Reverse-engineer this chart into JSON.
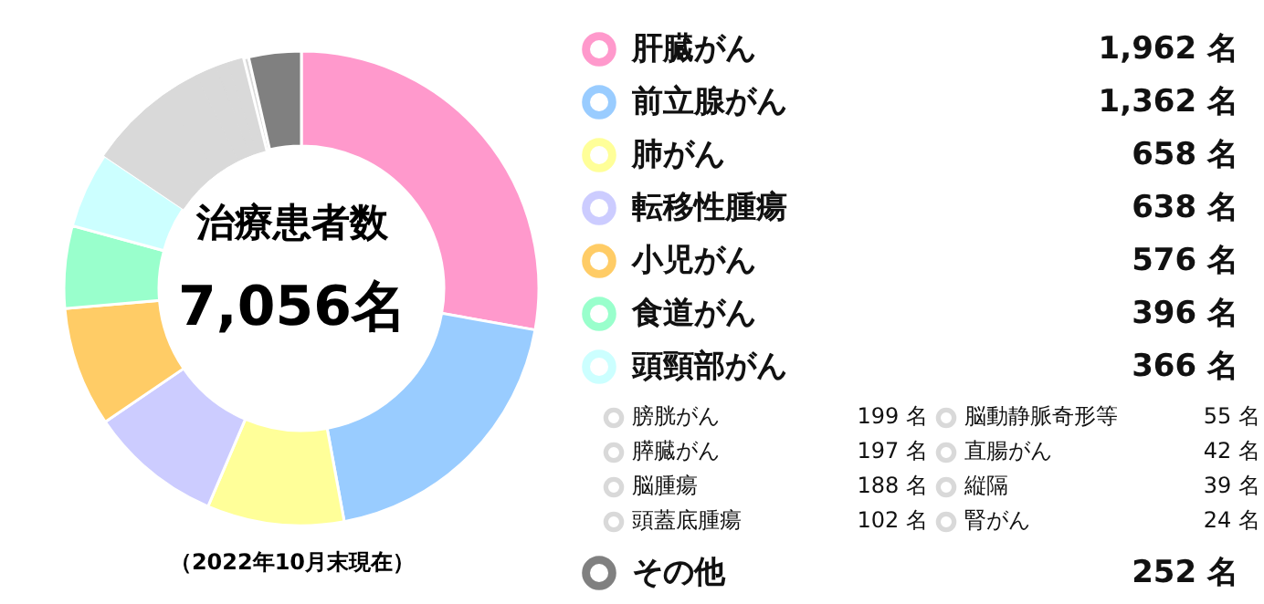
{
  "chart_data": {
    "type": "donut",
    "title": "治療患者数",
    "subtitle": "7,056名",
    "annotations": [
      "（2022年10月末現在）"
    ],
    "categories": [
      "肝臓がん",
      "前立腺がん",
      "肺がん",
      "転移性腫瘍",
      "小児がん",
      "食道がん",
      "頭頸部がん",
      "膀胱がん",
      "膵臓がん",
      "脳腫瘍",
      "頭蓋底腫瘍",
      "脳動静脈奇形等",
      "直腸がん",
      "縦隔",
      "腎がん",
      "その他"
    ],
    "values": [
      1962,
      1362,
      658,
      638,
      576,
      396,
      366,
      199,
      197,
      188,
      102,
      55,
      42,
      39,
      24,
      252
    ],
    "value_labels": [
      "1,962 名",
      "1,362 名",
      "658 名",
      "638 名",
      "576 名",
      "396 名",
      "366 名",
      "199 名",
      "197 名",
      "188 名",
      "102 名",
      "55 名",
      "42 名",
      "39 名",
      "24 名",
      "252 名"
    ],
    "colors": [
      "#ff99cc",
      "#99ccff",
      "#ffff99",
      "#ccccff",
      "#ffcc66",
      "#99ffcc",
      "#ccffff",
      "#d9d9d9",
      "#d9d9d9",
      "#d9d9d9",
      "#d9d9d9",
      "#d9d9d9",
      "#d9d9d9",
      "#d9d9d9",
      "#d9d9d9",
      "#808080"
    ],
    "legend": "right"
  }
}
